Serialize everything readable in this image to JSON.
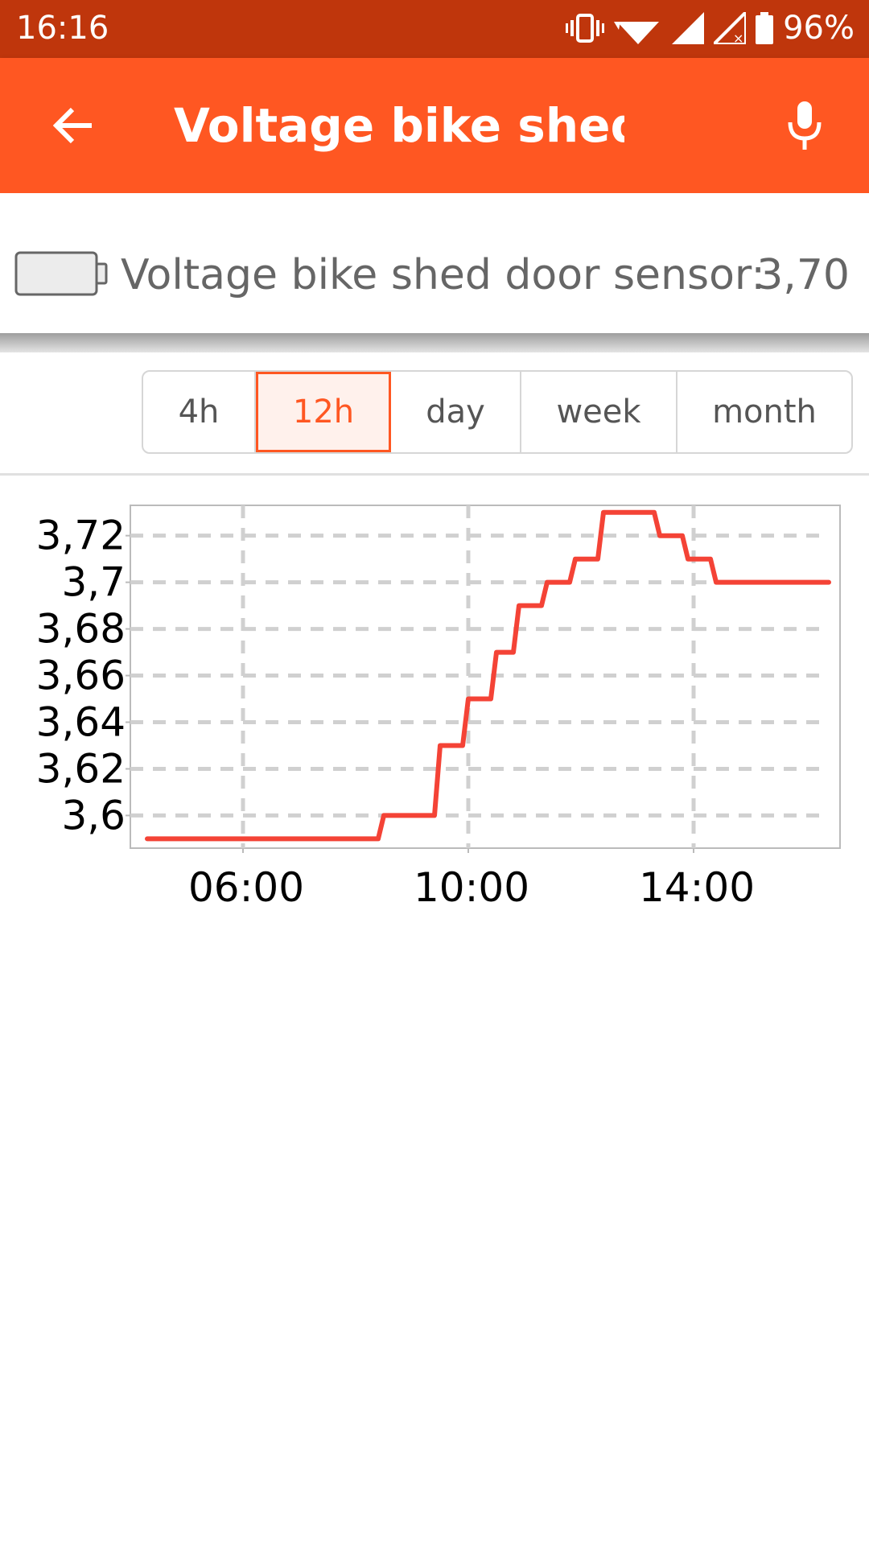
{
  "status_bar": {
    "time": "16:16",
    "battery_percent": "96%",
    "icons": [
      "vibrate-icon",
      "wifi-icon",
      "signal-icon",
      "signal-no-data-icon",
      "battery-icon"
    ]
  },
  "app_bar": {
    "title": "Voltage bike shed…",
    "back_icon": "arrow-back-icon",
    "mic_icon": "mic-icon",
    "background_color": "#ff5722"
  },
  "sensor": {
    "icon": "battery-outline-icon",
    "label": "Voltage bike shed door sensor:",
    "value": "3,70"
  },
  "range_tabs": {
    "items": [
      {
        "label": "4h",
        "active": false
      },
      {
        "label": "12h",
        "active": true
      },
      {
        "label": "day",
        "active": false
      },
      {
        "label": "week",
        "active": false
      },
      {
        "label": "month",
        "active": false
      }
    ],
    "accent_color": "#ff5722"
  },
  "chart_data": {
    "type": "line",
    "title": "",
    "xlabel": "",
    "ylabel": "",
    "x_tick_labels": [
      "06:00",
      "10:00",
      "14:00"
    ],
    "x_ticks_hours": [
      6,
      10,
      14
    ],
    "y_tick_labels": [
      "3,72",
      "3,7",
      "3,68",
      "3,66",
      "3,64",
      "3,62",
      "3,6"
    ],
    "y_ticks": [
      3.72,
      3.7,
      3.68,
      3.66,
      3.64,
      3.62,
      3.6
    ],
    "xlim_hours": [
      4.0,
      16.6
    ],
    "ylim": [
      3.586,
      3.733
    ],
    "grid": true,
    "line_color": "#f44336",
    "series": [
      {
        "x_hours": [
          4.3,
          8.4,
          8.5,
          9.4,
          9.5,
          9.9,
          10.0,
          10.4,
          10.5,
          10.8,
          10.9,
          11.3,
          11.4,
          11.8,
          11.9,
          12.3,
          12.4,
          13.3,
          13.4,
          13.8,
          13.9,
          14.3,
          14.4,
          16.4
        ],
        "values": [
          3.59,
          3.59,
          3.6,
          3.6,
          3.63,
          3.63,
          3.65,
          3.65,
          3.67,
          3.67,
          3.69,
          3.69,
          3.7,
          3.7,
          3.71,
          3.71,
          3.73,
          3.73,
          3.72,
          3.72,
          3.71,
          3.71,
          3.7,
          3.7
        ]
      }
    ]
  }
}
